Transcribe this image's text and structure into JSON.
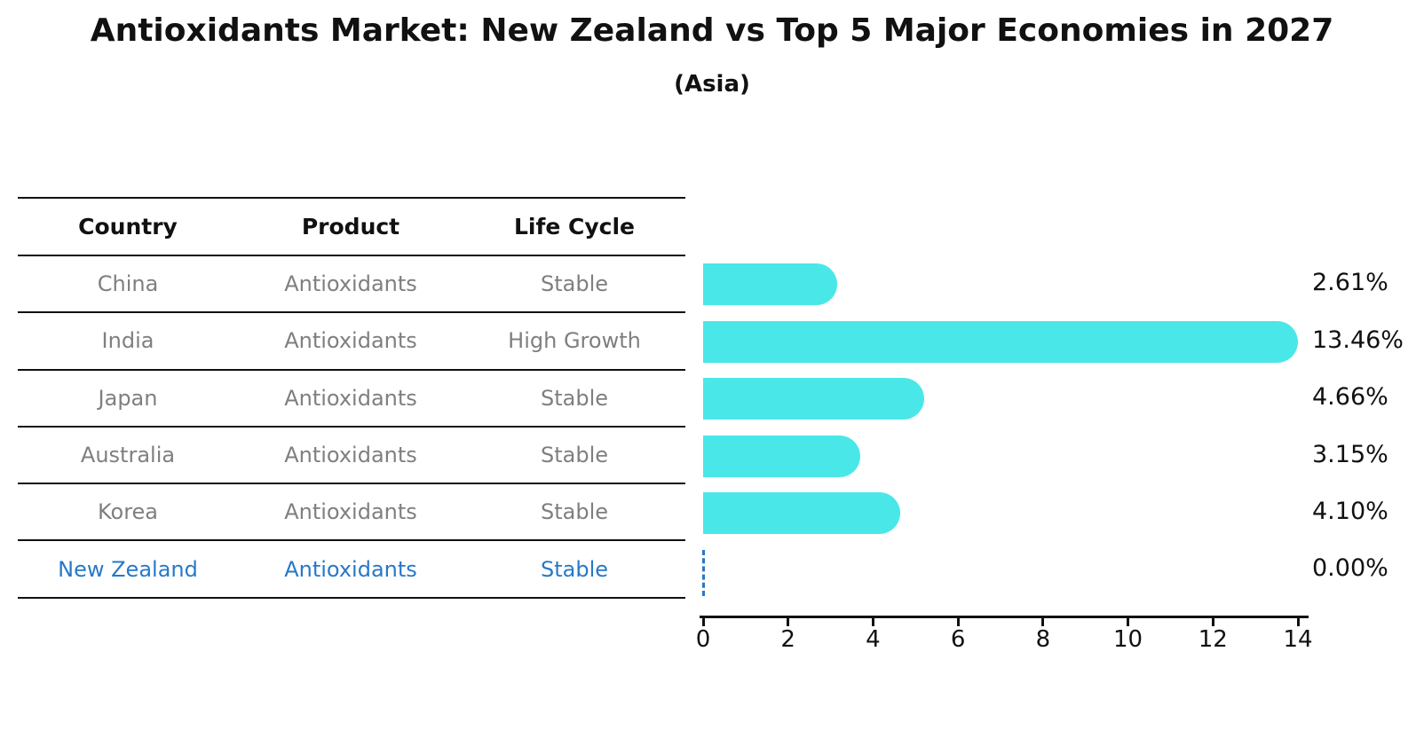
{
  "title": "Antioxidants Market: New Zealand vs Top 5 Major Economies in 2027",
  "subtitle": "(Asia)",
  "table": {
    "headers": [
      "Country",
      "Product",
      "Life Cycle"
    ],
    "rows": [
      {
        "country": "China",
        "product": "Antioxidants",
        "life_cycle": "Stable",
        "highlight": false
      },
      {
        "country": "India",
        "product": "Antioxidants",
        "life_cycle": "High Growth",
        "highlight": false
      },
      {
        "country": "Japan",
        "product": "Antioxidants",
        "life_cycle": "Stable",
        "highlight": false
      },
      {
        "country": "Australia",
        "product": "Antioxidants",
        "life_cycle": "Stable",
        "highlight": false
      },
      {
        "country": "Korea",
        "product": "Antioxidants",
        "life_cycle": "Stable",
        "highlight": false
      },
      {
        "country": "New Zealand",
        "product": "Antioxidants",
        "life_cycle": "Stable",
        "highlight": true
      }
    ]
  },
  "chart_data": {
    "type": "bar",
    "orientation": "horizontal",
    "title": "Antioxidants Market: New Zealand vs Top 5 Major Economies in 2027",
    "subtitle": "(Asia)",
    "categories": [
      "China",
      "India",
      "Japan",
      "Australia",
      "Korea",
      "New Zealand"
    ],
    "values": [
      2.61,
      13.46,
      4.66,
      3.15,
      4.1,
      0.0
    ],
    "value_labels": [
      "2.61%",
      "13.46%",
      "4.66%",
      "3.15%",
      "4.10%",
      "0.00%"
    ],
    "xlabel": "",
    "ylabel": "",
    "xlim": [
      0,
      14
    ],
    "x_ticks": [
      0,
      2,
      4,
      6,
      8,
      10,
      12,
      14
    ],
    "grid": false,
    "legend": "none",
    "zero_value_marker": "dashed-line"
  },
  "colors": {
    "bar": "#4AE7E8",
    "highlight": "#2878C8",
    "table_text": "#7F7F7F",
    "header_text": "#111111",
    "axis": "#111111"
  }
}
